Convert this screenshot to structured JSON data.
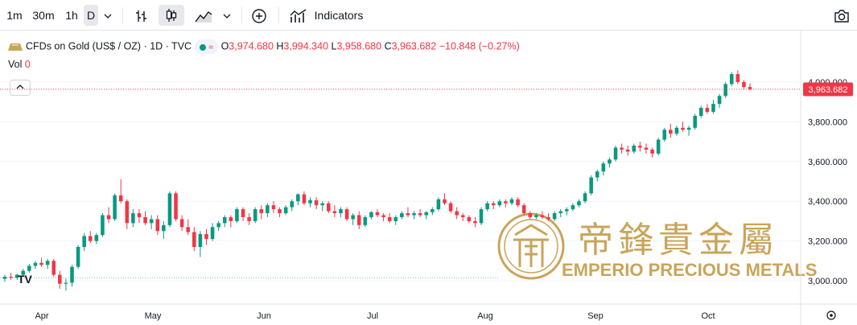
{
  "toolbar": {
    "intervals": [
      "1m",
      "30m",
      "1h",
      "D"
    ],
    "selected_interval": "D",
    "indicators_label": "Indicators",
    "icons": [
      "chevron-down-icon",
      "bar-chart-icon",
      "candlestick-icon",
      "area-chart-icon",
      "chevron-down-icon",
      "add-compare-icon",
      "indicators-icon",
      "camera-icon"
    ]
  },
  "legend": {
    "symbol": "CFDs on Gold (US$ / OZ) · 1D · TVC",
    "o_label": "O",
    "o_value": "3,974.680",
    "h_label": "H",
    "h_value": "3,994.340",
    "l_label": "L",
    "l_value": "3,958.680",
    "c_label": "C",
    "c_value": "3,963.682",
    "change": "−10.848 (−0.27%)"
  },
  "volume": {
    "label": "Vol",
    "value": "0"
  },
  "watermark": {
    "chinese": "帝鋒貴金屬",
    "english": "EMPERIO PRECIOUS METALS"
  },
  "price_label": "3,963.682",
  "colors": {
    "up": "#089981",
    "down": "#f23645",
    "gold": "#c9a55a",
    "grid": "#f0f3fa"
  },
  "chart_data": {
    "type": "candlestick",
    "x_labels": [
      "Apr",
      "May",
      "Jun",
      "Jul",
      "Aug",
      "Sep",
      "Oct"
    ],
    "y_ticks": [
      "4,000.000",
      "3,800.000",
      "3,600.000",
      "3,400.000",
      "3,200.000",
      "3,000.000"
    ],
    "y_tick_values": [
      4000,
      3800,
      3600,
      3400,
      3200,
      3000
    ],
    "ylim": [
      2915,
      4170
    ],
    "last_price": 3963.682,
    "baseline_price": 3015,
    "candles": [
      [
        3010,
        3030,
        2995,
        3020
      ],
      [
        3020,
        3040,
        3005,
        3015
      ],
      [
        3015,
        3035,
        3005,
        3030
      ],
      [
        3030,
        3060,
        3020,
        3050
      ],
      [
        3050,
        3085,
        3040,
        3075
      ],
      [
        3075,
        3100,
        3060,
        3090
      ],
      [
        3090,
        3115,
        3070,
        3080
      ],
      [
        3080,
        3110,
        3060,
        3100
      ],
      [
        3100,
        3110,
        3020,
        3030
      ],
      [
        3030,
        3050,
        2960,
        2985
      ],
      [
        2985,
        3010,
        2950,
        2990
      ],
      [
        2990,
        3080,
        2970,
        3070
      ],
      [
        3070,
        3180,
        3060,
        3170
      ],
      [
        3170,
        3240,
        3150,
        3225
      ],
      [
        3225,
        3250,
        3190,
        3200
      ],
      [
        3200,
        3240,
        3185,
        3230
      ],
      [
        3230,
        3340,
        3220,
        3330
      ],
      [
        3330,
        3370,
        3290,
        3310
      ],
      [
        3310,
        3440,
        3300,
        3430
      ],
      [
        3430,
        3510,
        3390,
        3400
      ],
      [
        3400,
        3410,
        3260,
        3290
      ],
      [
        3290,
        3360,
        3270,
        3340
      ],
      [
        3340,
        3360,
        3290,
        3320
      ],
      [
        3320,
        3350,
        3280,
        3290
      ],
      [
        3290,
        3330,
        3260,
        3310
      ],
      [
        3310,
        3330,
        3230,
        3250
      ],
      [
        3250,
        3300,
        3210,
        3280
      ],
      [
        3280,
        3450,
        3270,
        3440
      ],
      [
        3440,
        3450,
        3300,
        3310
      ],
      [
        3310,
        3330,
        3250,
        3270
      ],
      [
        3270,
        3310,
        3230,
        3245
      ],
      [
        3245,
        3270,
        3150,
        3170
      ],
      [
        3170,
        3250,
        3120,
        3235
      ],
      [
        3235,
        3260,
        3180,
        3210
      ],
      [
        3210,
        3290,
        3200,
        3270
      ],
      [
        3270,
        3300,
        3250,
        3290
      ],
      [
        3290,
        3330,
        3270,
        3320
      ],
      [
        3320,
        3330,
        3270,
        3300
      ],
      [
        3300,
        3370,
        3290,
        3360
      ],
      [
        3360,
        3370,
        3300,
        3320
      ],
      [
        3320,
        3340,
        3280,
        3300
      ],
      [
        3300,
        3370,
        3290,
        3360
      ],
      [
        3360,
        3380,
        3310,
        3340
      ],
      [
        3340,
        3390,
        3320,
        3380
      ],
      [
        3380,
        3400,
        3340,
        3360
      ],
      [
        3360,
        3370,
        3320,
        3340
      ],
      [
        3340,
        3380,
        3330,
        3370
      ],
      [
        3370,
        3410,
        3350,
        3400
      ],
      [
        3400,
        3440,
        3380,
        3435
      ],
      [
        3435,
        3450,
        3380,
        3390
      ],
      [
        3390,
        3420,
        3370,
        3405
      ],
      [
        3405,
        3420,
        3360,
        3380
      ],
      [
        3380,
        3400,
        3350,
        3390
      ],
      [
        3390,
        3400,
        3340,
        3350
      ],
      [
        3350,
        3380,
        3320,
        3340
      ],
      [
        3340,
        3370,
        3320,
        3360
      ],
      [
        3360,
        3370,
        3300,
        3310
      ],
      [
        3310,
        3340,
        3280,
        3330
      ],
      [
        3330,
        3350,
        3260,
        3280
      ],
      [
        3280,
        3330,
        3270,
        3320
      ],
      [
        3320,
        3350,
        3310,
        3345
      ],
      [
        3345,
        3360,
        3320,
        3330
      ],
      [
        3330,
        3340,
        3300,
        3320
      ],
      [
        3320,
        3340,
        3290,
        3300
      ],
      [
        3300,
        3330,
        3280,
        3320
      ],
      [
        3320,
        3350,
        3310,
        3340
      ],
      [
        3340,
        3370,
        3320,
        3330
      ],
      [
        3330,
        3350,
        3310,
        3340
      ],
      [
        3340,
        3360,
        3320,
        3330
      ],
      [
        3330,
        3350,
        3310,
        3345
      ],
      [
        3345,
        3370,
        3330,
        3360
      ],
      [
        3360,
        3420,
        3350,
        3410
      ],
      [
        3410,
        3440,
        3380,
        3390
      ],
      [
        3390,
        3400,
        3340,
        3350
      ],
      [
        3350,
        3370,
        3310,
        3330
      ],
      [
        3330,
        3340,
        3300,
        3320
      ],
      [
        3320,
        3330,
        3290,
        3300
      ],
      [
        3300,
        3320,
        3270,
        3290
      ],
      [
        3290,
        3370,
        3280,
        3360
      ],
      [
        3360,
        3400,
        3350,
        3390
      ],
      [
        3390,
        3400,
        3360,
        3380
      ],
      [
        3380,
        3410,
        3370,
        3400
      ],
      [
        3400,
        3410,
        3370,
        3390
      ],
      [
        3390,
        3420,
        3380,
        3410
      ],
      [
        3410,
        3420,
        3370,
        3380
      ],
      [
        3380,
        3390,
        3330,
        3340
      ],
      [
        3340,
        3350,
        3310,
        3320
      ],
      [
        3320,
        3340,
        3310,
        3330
      ],
      [
        3330,
        3350,
        3310,
        3320
      ],
      [
        3320,
        3340,
        3300,
        3310
      ],
      [
        3310,
        3350,
        3300,
        3340
      ],
      [
        3340,
        3360,
        3320,
        3350
      ],
      [
        3350,
        3370,
        3330,
        3360
      ],
      [
        3360,
        3390,
        3350,
        3380
      ],
      [
        3380,
        3410,
        3370,
        3400
      ],
      [
        3400,
        3450,
        3390,
        3440
      ],
      [
        3440,
        3530,
        3430,
        3520
      ],
      [
        3520,
        3560,
        3500,
        3550
      ],
      [
        3550,
        3600,
        3530,
        3590
      ],
      [
        3590,
        3620,
        3570,
        3610
      ],
      [
        3610,
        3680,
        3600,
        3670
      ],
      [
        3670,
        3690,
        3640,
        3660
      ],
      [
        3660,
        3680,
        3630,
        3650
      ],
      [
        3650,
        3690,
        3640,
        3680
      ],
      [
        3680,
        3700,
        3650,
        3670
      ],
      [
        3670,
        3690,
        3640,
        3660
      ],
      [
        3660,
        3670,
        3620,
        3640
      ],
      [
        3640,
        3720,
        3630,
        3710
      ],
      [
        3710,
        3770,
        3700,
        3760
      ],
      [
        3760,
        3790,
        3720,
        3740
      ],
      [
        3740,
        3780,
        3730,
        3770
      ],
      [
        3770,
        3800,
        3750,
        3760
      ],
      [
        3760,
        3780,
        3730,
        3770
      ],
      [
        3770,
        3840,
        3760,
        3830
      ],
      [
        3830,
        3880,
        3820,
        3870
      ],
      [
        3870,
        3890,
        3840,
        3850
      ],
      [
        3850,
        3910,
        3840,
        3890
      ],
      [
        3890,
        3940,
        3870,
        3930
      ],
      [
        3930,
        4000,
        3920,
        3990
      ],
      [
        3990,
        4050,
        3980,
        4040
      ],
      [
        4040,
        4060,
        3990,
        4000
      ],
      [
        4000,
        4010,
        3960,
        3975
      ],
      [
        3975,
        3994,
        3959,
        3964
      ]
    ]
  }
}
